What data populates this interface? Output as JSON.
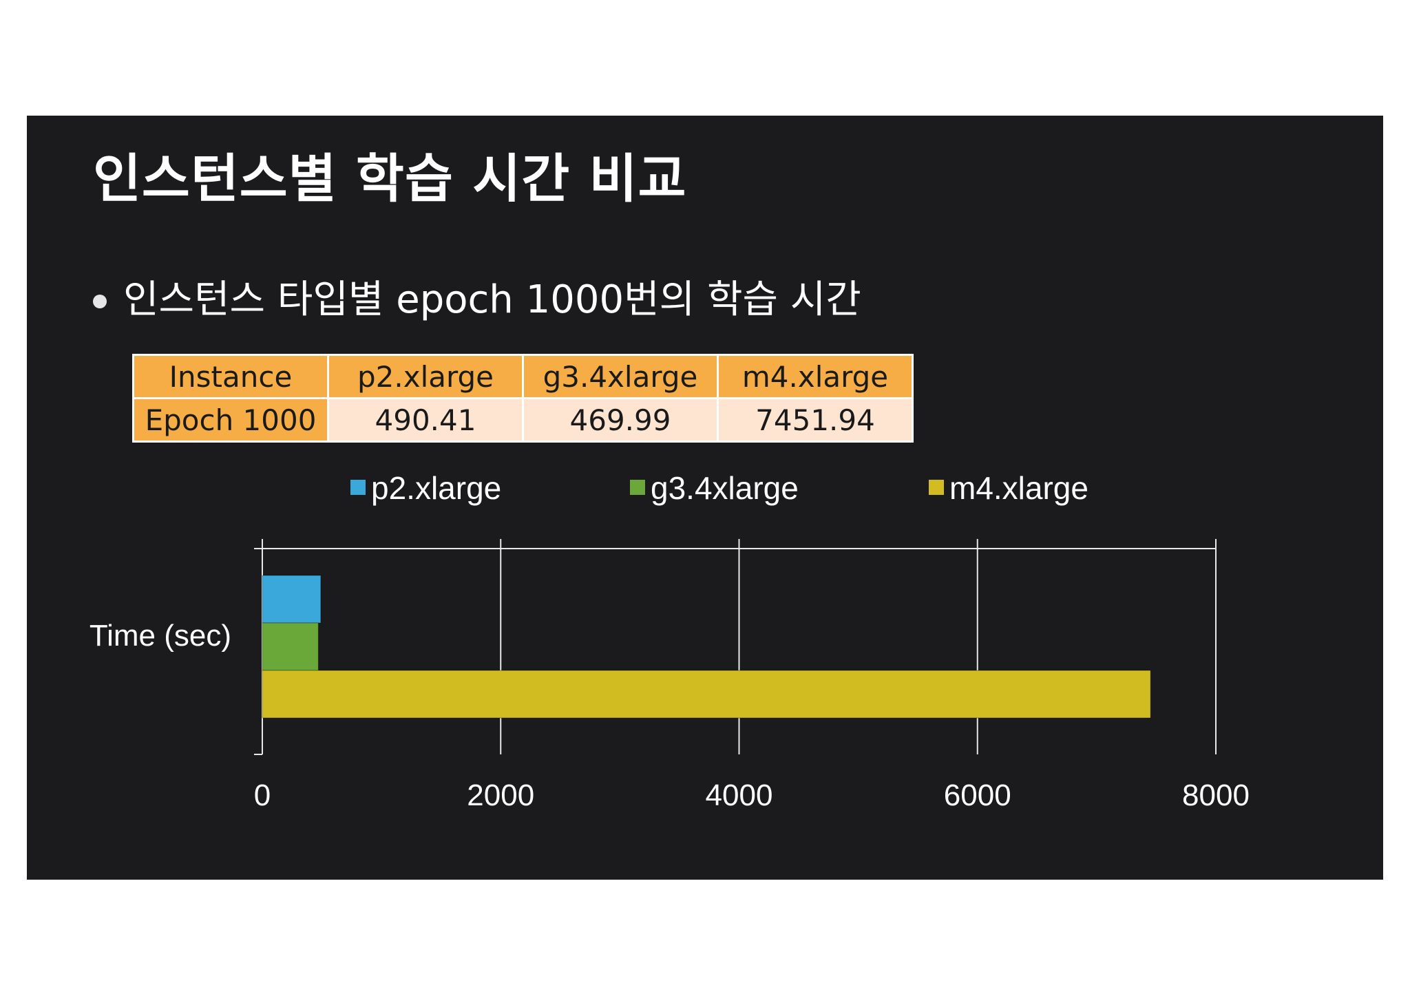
{
  "slide": {
    "title": "인스턴스별 학습 시간 비교",
    "bullet": "인스턴스 타입별 epoch 1000번의 학습 시간"
  },
  "table": {
    "header": [
      "Instance",
      "p2.xlarge",
      "g3.4xlarge",
      "m4.xlarge"
    ],
    "row": [
      "Epoch 1000",
      "490.41",
      "469.99",
      "7451.94"
    ]
  },
  "chart_data": {
    "type": "bar",
    "orientation": "horizontal",
    "categories": [
      "Time (sec)"
    ],
    "series": [
      {
        "name": "p2.xlarge",
        "values": [
          490.41
        ],
        "color": "#3ba8dc"
      },
      {
        "name": "g3.4xlarge",
        "values": [
          469.99
        ],
        "color": "#6aa83a"
      },
      {
        "name": "m4.xlarge",
        "values": [
          7451.94
        ],
        "color": "#d1bd22"
      }
    ],
    "xlim": [
      0,
      8000
    ],
    "xticks": [
      0,
      2000,
      4000,
      6000,
      8000
    ],
    "grid": true,
    "legend": "top"
  }
}
